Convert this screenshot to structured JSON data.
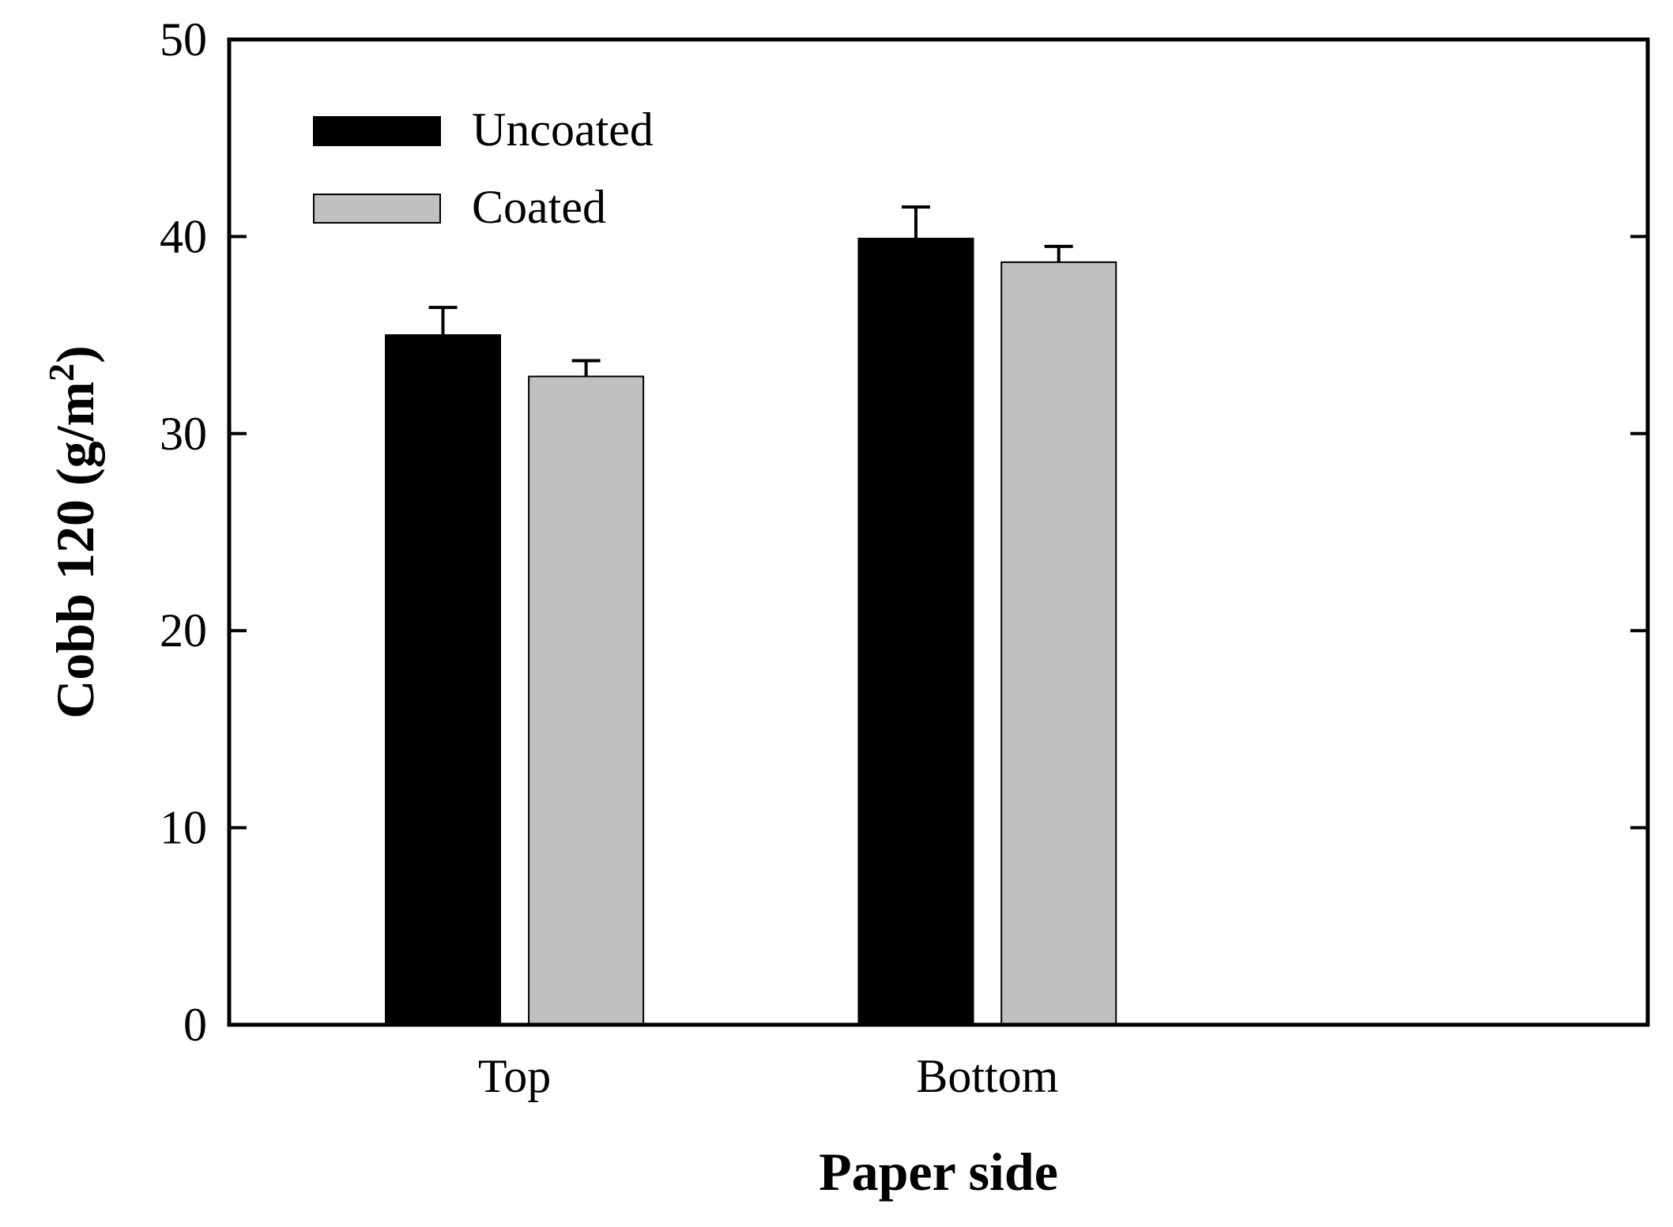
{
  "chart_data": {
    "type": "bar",
    "categories": [
      "Top",
      "Bottom"
    ],
    "series": [
      {
        "name": "Uncoated",
        "values": [
          35.0,
          39.9
        ],
        "errors": [
          1.4,
          1.6
        ],
        "color": "#000000"
      },
      {
        "name": "Coated",
        "values": [
          32.9,
          38.7
        ],
        "errors": [
          0.8,
          0.8
        ],
        "color": "#c0c0c0"
      }
    ],
    "xlabel": "Paper side",
    "ylabel": "Cobb 120 (g/m",
    "ylabel_sup": "2",
    "ylabel_close": ")",
    "ylim": [
      0,
      50
    ],
    "yticks": [
      "0",
      "10",
      "20",
      "30",
      "40",
      "50"
    ],
    "grid": false,
    "legend_position": "top-left"
  }
}
